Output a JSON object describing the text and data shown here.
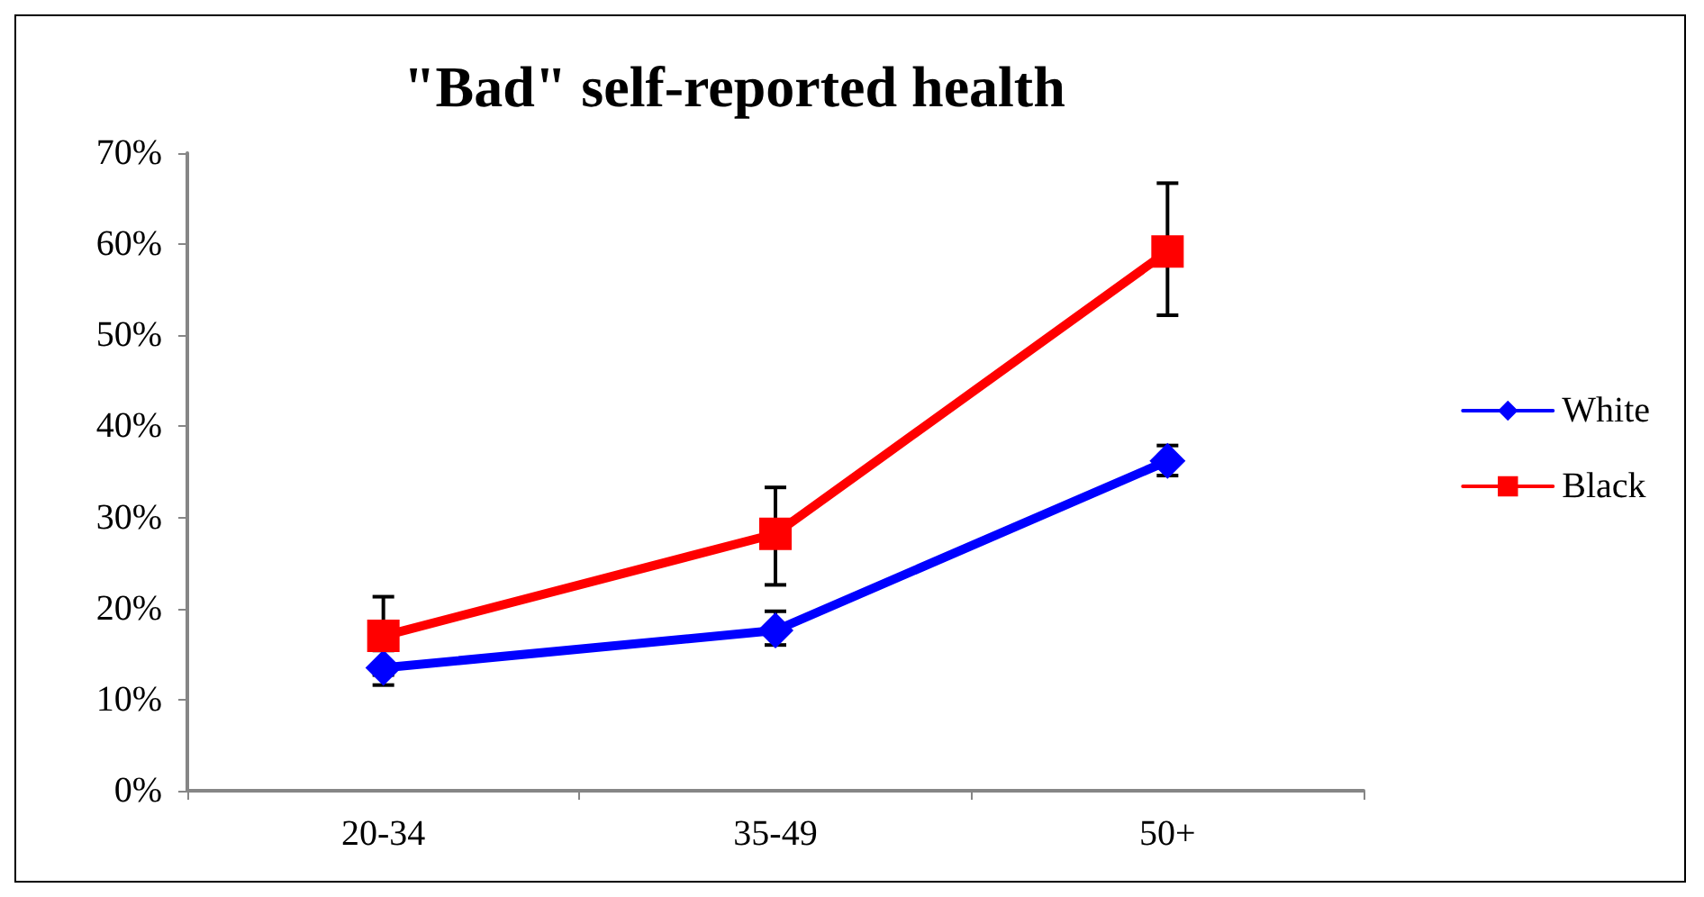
{
  "chart_data": {
    "type": "line",
    "title": "\"Bad\" self-reported health",
    "categories": [
      "20-34",
      "35-49",
      "50+"
    ],
    "series": [
      {
        "name": "White",
        "color": "#0000ff",
        "marker": "diamond",
        "values": [
          13.5,
          17.6,
          36.2
        ],
        "errors": [
          [
            11.6,
            15.4
          ],
          [
            16.0,
            19.7
          ],
          [
            34.6,
            37.9
          ]
        ]
      },
      {
        "name": "Black",
        "color": "#ff0000",
        "marker": "square",
        "values": [
          17.0,
          28.2,
          59.2
        ],
        "errors": [
          [
            12.7,
            21.3
          ],
          [
            22.6,
            33.3
          ],
          [
            52.2,
            66.7
          ]
        ]
      }
    ],
    "ylim": [
      0,
      70
    ],
    "yticks": [
      {
        "value": 0,
        "label": "0%"
      },
      {
        "value": 10,
        "label": "10%"
      },
      {
        "value": 20,
        "label": "20%"
      },
      {
        "value": 30,
        "label": "30%"
      },
      {
        "value": 40,
        "label": "40%"
      },
      {
        "value": 50,
        "label": "50%"
      },
      {
        "value": 60,
        "label": "60%"
      },
      {
        "value": 70,
        "label": "70%"
      }
    ],
    "grid": false,
    "legend": "right",
    "line_style": "solid"
  }
}
